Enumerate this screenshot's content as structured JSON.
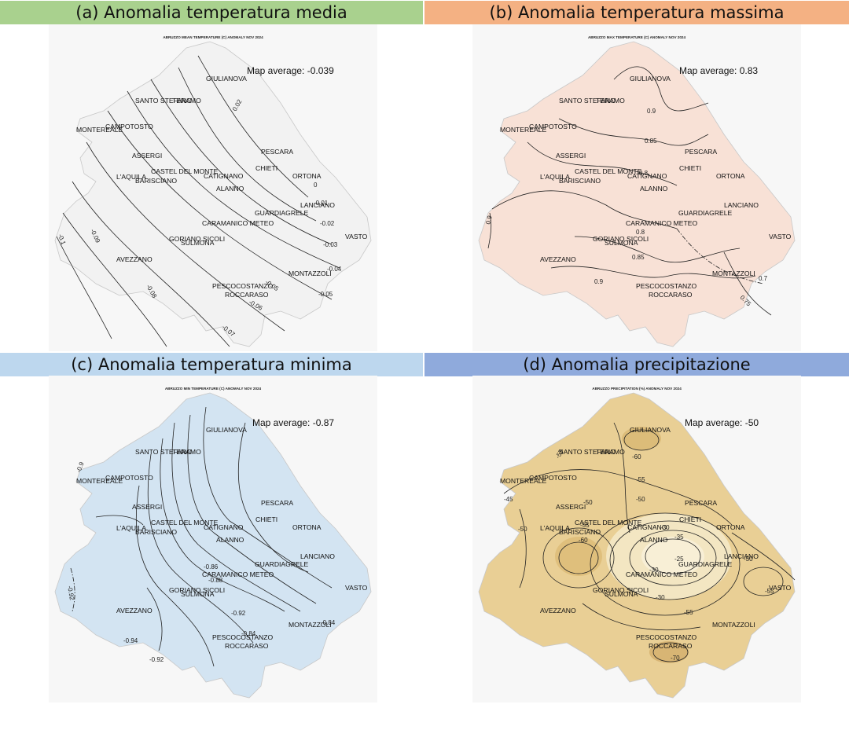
{
  "panels": [
    {
      "id": "a",
      "header": "(a) Anomalia temperatura media",
      "header_color": "#a9d18e",
      "map_title": "ABRUZZO MEAN TEMPERATURE (C) ANOMALY NOV 2024",
      "map_average": "Map average: -0.039",
      "fill_color": "#f3f3f3",
      "contour_labels": [
        "0.02",
        "0",
        "-0.01",
        "-0.02",
        "-0.03",
        "-0.04",
        "-0.05",
        "-0.05",
        "-0.06",
        "-0.07",
        "-0.08",
        "-0.09",
        "-0.1"
      ]
    },
    {
      "id": "b",
      "header": "(b) Anomalia temperatura massima",
      "header_color": "#f4b183",
      "map_title": "ABRUZZO MAX TEMPERATURE (C) ANOMALY NOV 2024",
      "map_average": "Map average: 0.83",
      "fill_color": "#f9e3d9",
      "contour_labels": [
        "0.9",
        "0.85",
        "0.8",
        "0.8",
        "0.85",
        "0.9",
        "0.9",
        "0.7",
        "0.75"
      ]
    },
    {
      "id": "c",
      "header": "(c) Anomalia temperatura minima",
      "header_color": "#bdd7ee",
      "map_title": "ABRUZZO MIN TEMPERATURE (C) ANOMALY NOV 2024",
      "map_average": "Map average: -0.87",
      "fill_color": "#d4e5f3",
      "contour_labels": [
        "-0.86",
        "-0.88",
        "-0.84",
        "-0.92",
        "-0.94",
        "-0.92",
        "-0.84",
        "-0.9",
        "-0.92"
      ]
    },
    {
      "id": "d",
      "header": "(d) Anomalia precipitazione",
      "header_color": "#8faadc",
      "map_title": "ABRUZZO PRECIPITATION (%) ANOMALY NOV 2024",
      "map_average": "Map average: -50",
      "fill_color": "#ecd6a3",
      "contour_labels": [
        "-60",
        "-55",
        "-55",
        "-50",
        "-50",
        "-45",
        "-50",
        "-55",
        "-60",
        "-30",
        "-35",
        "-25",
        "-30",
        "-50",
        "-55",
        "-55",
        "-30",
        "-70"
      ]
    }
  ],
  "cities": [
    "GIULIANOVA",
    "TERAMO",
    "SANTO STEFANO",
    "MONTEREALE",
    "CAMPOTOSTO",
    "PESCARA",
    "CHIETI",
    "ORTONA",
    "ASSERGI",
    "CASTEL DEL MONTE",
    "L'AQUILA",
    "BARISCIANO",
    "CATIGNANO",
    "ALANNO",
    "LANCIANO",
    "GUARDIAGRELE",
    "CARAMANICO METEO",
    "VASTO",
    "GORIANO SICOLI",
    "SULMONA",
    "AVEZZANO",
    "MONTAZZOLI",
    "PESCOCOSTANZO",
    "ROCCARASO"
  ]
}
